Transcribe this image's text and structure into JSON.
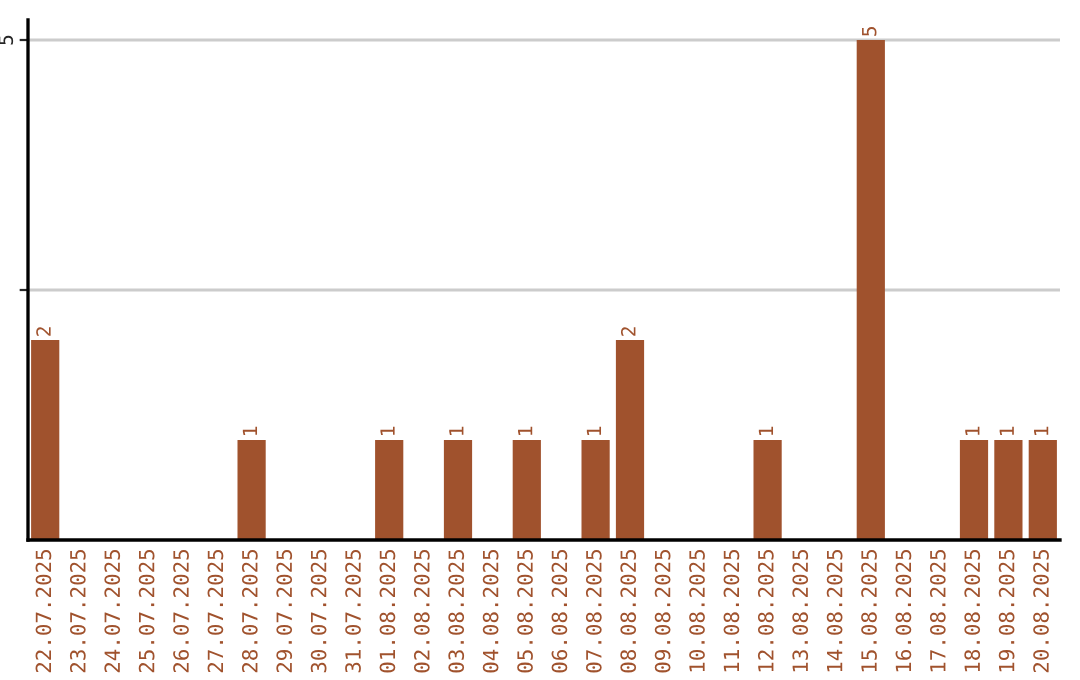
{
  "chart_data": {
    "type": "bar",
    "categories": [
      "22.07.2025",
      "23.07.2025",
      "24.07.2025",
      "25.07.2025",
      "26.07.2025",
      "27.07.2025",
      "28.07.2025",
      "29.07.2025",
      "30.07.2025",
      "31.07.2025",
      "01.08.2025",
      "02.08.2025",
      "03.08.2025",
      "04.08.2025",
      "05.08.2025",
      "06.08.2025",
      "07.08.2025",
      "08.08.2025",
      "09.08.2025",
      "10.08.2025",
      "11.08.2025",
      "12.08.2025",
      "13.08.2025",
      "14.08.2025",
      "15.08.2025",
      "16.08.2025",
      "17.08.2025",
      "18.08.2025",
      "19.08.2025",
      "20.08.2025"
    ],
    "values": [
      2,
      0,
      0,
      0,
      0,
      0,
      1,
      0,
      0,
      0,
      1,
      0,
      1,
      0,
      1,
      0,
      1,
      2,
      0,
      0,
      0,
      1,
      0,
      0,
      5,
      0,
      0,
      1,
      1,
      1
    ],
    "value_labels": [
      "2",
      null,
      null,
      null,
      null,
      null,
      "1",
      null,
      null,
      null,
      "1",
      null,
      "1",
      null,
      "1",
      null,
      "1",
      "2",
      null,
      null,
      null,
      "1",
      null,
      null,
      "5",
      null,
      null,
      "1",
      "1",
      "1"
    ],
    "color": "#a0522d",
    "ylim": [
      0,
      5.2
    ],
    "yticks": [
      {
        "value": 2.5,
        "label": null
      },
      5
    ],
    "grid": "y",
    "legend": false
  }
}
